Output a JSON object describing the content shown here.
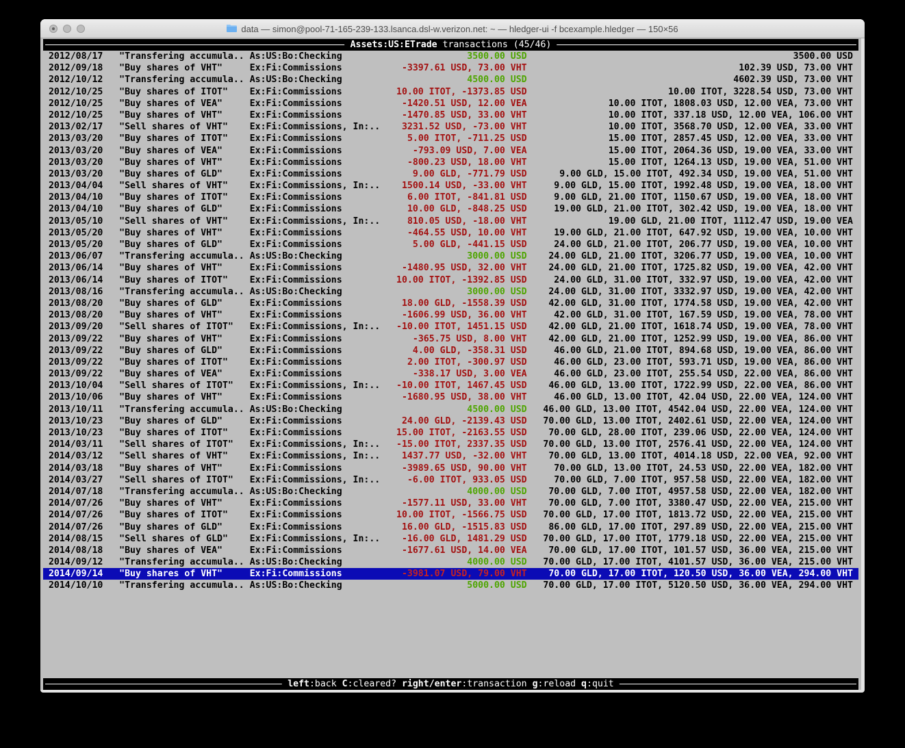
{
  "window": {
    "title": "data — simon@pool-71-165-239-133.lsanca.dsl-w.verizon.net: ~ — hledger-ui -f bcexample.hledger — 150×56"
  },
  "screen_header": {
    "account": "Assets:US:ETrade",
    "suffix": " transactions (45/46)"
  },
  "footer": {
    "hints": [
      {
        "key": "left",
        "label": ":back"
      },
      {
        "key": "C",
        "label": ":cleared?"
      },
      {
        "key": "right/enter",
        "label": ":transaction"
      },
      {
        "key": "g",
        "label": ":reload"
      },
      {
        "key": "q",
        "label": ":quit"
      }
    ]
  },
  "colors": {
    "terminal_bg": "#bfbfbf",
    "bar_bg": "#000000",
    "bar_fg": "#ffffff",
    "amount_negative": "#a31111",
    "amount_positive": "#4ea500",
    "selected_bg": "#0b0bb5",
    "selected_fg": "#ffffff",
    "selected_amount": "#c62222"
  },
  "transactions": [
    {
      "date": "2012/08/17",
      "desc": "\"Transfering accumula..",
      "acct": "As:US:Bo:Checking",
      "amt": "3500.00 USD",
      "amt_color": "green",
      "bal": "3500.00 USD",
      "selected": false
    },
    {
      "date": "2012/09/18",
      "desc": "\"Buy shares of VHT\"",
      "acct": "Ex:Fi:Commissions",
      "amt": "-3397.61 USD, 73.00 VHT",
      "amt_color": "red",
      "bal": "102.39 USD, 73.00 VHT",
      "selected": false
    },
    {
      "date": "2012/10/12",
      "desc": "\"Transfering accumula..",
      "acct": "As:US:Bo:Checking",
      "amt": "4500.00 USD",
      "amt_color": "green",
      "bal": "4602.39 USD, 73.00 VHT",
      "selected": false
    },
    {
      "date": "2012/10/25",
      "desc": "\"Buy shares of ITOT\"",
      "acct": "Ex:Fi:Commissions",
      "amt": "10.00 ITOT, -1373.85 USD",
      "amt_color": "red",
      "bal": "10.00 ITOT, 3228.54 USD, 73.00 VHT",
      "selected": false
    },
    {
      "date": "2012/10/25",
      "desc": "\"Buy shares of VEA\"",
      "acct": "Ex:Fi:Commissions",
      "amt": "-1420.51 USD, 12.00 VEA",
      "amt_color": "red",
      "bal": "10.00 ITOT, 1808.03 USD, 12.00 VEA, 73.00 VHT",
      "selected": false
    },
    {
      "date": "2012/10/25",
      "desc": "\"Buy shares of VHT\"",
      "acct": "Ex:Fi:Commissions",
      "amt": "-1470.85 USD, 33.00 VHT",
      "amt_color": "red",
      "bal": "10.00 ITOT, 337.18 USD, 12.00 VEA, 106.00 VHT",
      "selected": false
    },
    {
      "date": "2013/02/17",
      "desc": "\"Sell shares of VHT\"",
      "acct": "Ex:Fi:Commissions, In:..",
      "amt": "3231.52 USD, -73.00 VHT",
      "amt_color": "red",
      "bal": "10.00 ITOT, 3568.70 USD, 12.00 VEA, 33.00 VHT",
      "selected": false
    },
    {
      "date": "2013/03/20",
      "desc": "\"Buy shares of ITOT\"",
      "acct": "Ex:Fi:Commissions",
      "amt": "5.00 ITOT, -711.25 USD",
      "amt_color": "red",
      "bal": "15.00 ITOT, 2857.45 USD, 12.00 VEA, 33.00 VHT",
      "selected": false
    },
    {
      "date": "2013/03/20",
      "desc": "\"Buy shares of VEA\"",
      "acct": "Ex:Fi:Commissions",
      "amt": "-793.09 USD, 7.00 VEA",
      "amt_color": "red",
      "bal": "15.00 ITOT, 2064.36 USD, 19.00 VEA, 33.00 VHT",
      "selected": false
    },
    {
      "date": "2013/03/20",
      "desc": "\"Buy shares of VHT\"",
      "acct": "Ex:Fi:Commissions",
      "amt": "-800.23 USD, 18.00 VHT",
      "amt_color": "red",
      "bal": "15.00 ITOT, 1264.13 USD, 19.00 VEA, 51.00 VHT",
      "selected": false
    },
    {
      "date": "2013/03/20",
      "desc": "\"Buy shares of GLD\"",
      "acct": "Ex:Fi:Commissions",
      "amt": "9.00 GLD, -771.79 USD",
      "amt_color": "red",
      "bal": "9.00 GLD, 15.00 ITOT, 492.34 USD, 19.00 VEA, 51.00 VHT",
      "selected": false
    },
    {
      "date": "2013/04/04",
      "desc": "\"Sell shares of VHT\"",
      "acct": "Ex:Fi:Commissions, In:..",
      "amt": "1500.14 USD, -33.00 VHT",
      "amt_color": "red",
      "bal": "9.00 GLD, 15.00 ITOT, 1992.48 USD, 19.00 VEA, 18.00 VHT",
      "selected": false
    },
    {
      "date": "2013/04/10",
      "desc": "\"Buy shares of ITOT\"",
      "acct": "Ex:Fi:Commissions",
      "amt": "6.00 ITOT, -841.81 USD",
      "amt_color": "red",
      "bal": "9.00 GLD, 21.00 ITOT, 1150.67 USD, 19.00 VEA, 18.00 VHT",
      "selected": false
    },
    {
      "date": "2013/04/10",
      "desc": "\"Buy shares of GLD\"",
      "acct": "Ex:Fi:Commissions",
      "amt": "10.00 GLD, -848.25 USD",
      "amt_color": "red",
      "bal": "19.00 GLD, 21.00 ITOT, 302.42 USD, 19.00 VEA, 18.00 VHT",
      "selected": false
    },
    {
      "date": "2013/05/10",
      "desc": "\"Sell shares of VHT\"",
      "acct": "Ex:Fi:Commissions, In:..",
      "amt": "810.05 USD, -18.00 VHT",
      "amt_color": "red",
      "bal": "19.00 GLD, 21.00 ITOT, 1112.47 USD, 19.00 VEA",
      "selected": false
    },
    {
      "date": "2013/05/20",
      "desc": "\"Buy shares of VHT\"",
      "acct": "Ex:Fi:Commissions",
      "amt": "-464.55 USD, 10.00 VHT",
      "amt_color": "red",
      "bal": "19.00 GLD, 21.00 ITOT, 647.92 USD, 19.00 VEA, 10.00 VHT",
      "selected": false
    },
    {
      "date": "2013/05/20",
      "desc": "\"Buy shares of GLD\"",
      "acct": "Ex:Fi:Commissions",
      "amt": "5.00 GLD, -441.15 USD",
      "amt_color": "red",
      "bal": "24.00 GLD, 21.00 ITOT, 206.77 USD, 19.00 VEA, 10.00 VHT",
      "selected": false
    },
    {
      "date": "2013/06/07",
      "desc": "\"Transfering accumula..",
      "acct": "As:US:Bo:Checking",
      "amt": "3000.00 USD",
      "amt_color": "green",
      "bal": "24.00 GLD, 21.00 ITOT, 3206.77 USD, 19.00 VEA, 10.00 VHT",
      "selected": false
    },
    {
      "date": "2013/06/14",
      "desc": "\"Buy shares of VHT\"",
      "acct": "Ex:Fi:Commissions",
      "amt": "-1480.95 USD, 32.00 VHT",
      "amt_color": "red",
      "bal": "24.00 GLD, 21.00 ITOT, 1725.82 USD, 19.00 VEA, 42.00 VHT",
      "selected": false
    },
    {
      "date": "2013/06/14",
      "desc": "\"Buy shares of ITOT\"",
      "acct": "Ex:Fi:Commissions",
      "amt": "10.00 ITOT, -1392.85 USD",
      "amt_color": "red",
      "bal": "24.00 GLD, 31.00 ITOT, 332.97 USD, 19.00 VEA, 42.00 VHT",
      "selected": false
    },
    {
      "date": "2013/08/16",
      "desc": "\"Transfering accumula..",
      "acct": "As:US:Bo:Checking",
      "amt": "3000.00 USD",
      "amt_color": "green",
      "bal": "24.00 GLD, 31.00 ITOT, 3332.97 USD, 19.00 VEA, 42.00 VHT",
      "selected": false
    },
    {
      "date": "2013/08/20",
      "desc": "\"Buy shares of GLD\"",
      "acct": "Ex:Fi:Commissions",
      "amt": "18.00 GLD, -1558.39 USD",
      "amt_color": "red",
      "bal": "42.00 GLD, 31.00 ITOT, 1774.58 USD, 19.00 VEA, 42.00 VHT",
      "selected": false
    },
    {
      "date": "2013/08/20",
      "desc": "\"Buy shares of VHT\"",
      "acct": "Ex:Fi:Commissions",
      "amt": "-1606.99 USD, 36.00 VHT",
      "amt_color": "red",
      "bal": "42.00 GLD, 31.00 ITOT, 167.59 USD, 19.00 VEA, 78.00 VHT",
      "selected": false
    },
    {
      "date": "2013/09/20",
      "desc": "\"Sell shares of ITOT\"",
      "acct": "Ex:Fi:Commissions, In:..",
      "amt": "-10.00 ITOT, 1451.15 USD",
      "amt_color": "red",
      "bal": "42.00 GLD, 21.00 ITOT, 1618.74 USD, 19.00 VEA, 78.00 VHT",
      "selected": false
    },
    {
      "date": "2013/09/22",
      "desc": "\"Buy shares of VHT\"",
      "acct": "Ex:Fi:Commissions",
      "amt": "-365.75 USD, 8.00 VHT",
      "amt_color": "red",
      "bal": "42.00 GLD, 21.00 ITOT, 1252.99 USD, 19.00 VEA, 86.00 VHT",
      "selected": false
    },
    {
      "date": "2013/09/22",
      "desc": "\"Buy shares of GLD\"",
      "acct": "Ex:Fi:Commissions",
      "amt": "4.00 GLD, -358.31 USD",
      "amt_color": "red",
      "bal": "46.00 GLD, 21.00 ITOT, 894.68 USD, 19.00 VEA, 86.00 VHT",
      "selected": false
    },
    {
      "date": "2013/09/22",
      "desc": "\"Buy shares of ITOT\"",
      "acct": "Ex:Fi:Commissions",
      "amt": "2.00 ITOT, -300.97 USD",
      "amt_color": "red",
      "bal": "46.00 GLD, 23.00 ITOT, 593.71 USD, 19.00 VEA, 86.00 VHT",
      "selected": false
    },
    {
      "date": "2013/09/22",
      "desc": "\"Buy shares of VEA\"",
      "acct": "Ex:Fi:Commissions",
      "amt": "-338.17 USD, 3.00 VEA",
      "amt_color": "red",
      "bal": "46.00 GLD, 23.00 ITOT, 255.54 USD, 22.00 VEA, 86.00 VHT",
      "selected": false
    },
    {
      "date": "2013/10/04",
      "desc": "\"Sell shares of ITOT\"",
      "acct": "Ex:Fi:Commissions, In:..",
      "amt": "-10.00 ITOT, 1467.45 USD",
      "amt_color": "red",
      "bal": "46.00 GLD, 13.00 ITOT, 1722.99 USD, 22.00 VEA, 86.00 VHT",
      "selected": false
    },
    {
      "date": "2013/10/06",
      "desc": "\"Buy shares of VHT\"",
      "acct": "Ex:Fi:Commissions",
      "amt": "-1680.95 USD, 38.00 VHT",
      "amt_color": "red",
      "bal": "46.00 GLD, 13.00 ITOT, 42.04 USD, 22.00 VEA, 124.00 VHT",
      "selected": false
    },
    {
      "date": "2013/10/11",
      "desc": "\"Transfering accumula..",
      "acct": "As:US:Bo:Checking",
      "amt": "4500.00 USD",
      "amt_color": "green",
      "bal": "46.00 GLD, 13.00 ITOT, 4542.04 USD, 22.00 VEA, 124.00 VHT",
      "selected": false
    },
    {
      "date": "2013/10/23",
      "desc": "\"Buy shares of GLD\"",
      "acct": "Ex:Fi:Commissions",
      "amt": "24.00 GLD, -2139.43 USD",
      "amt_color": "red",
      "bal": "70.00 GLD, 13.00 ITOT, 2402.61 USD, 22.00 VEA, 124.00 VHT",
      "selected": false
    },
    {
      "date": "2013/10/23",
      "desc": "\"Buy shares of ITOT\"",
      "acct": "Ex:Fi:Commissions",
      "amt": "15.00 ITOT, -2163.55 USD",
      "amt_color": "red",
      "bal": "70.00 GLD, 28.00 ITOT, 239.06 USD, 22.00 VEA, 124.00 VHT",
      "selected": false
    },
    {
      "date": "2014/03/11",
      "desc": "\"Sell shares of ITOT\"",
      "acct": "Ex:Fi:Commissions, In:..",
      "amt": "-15.00 ITOT, 2337.35 USD",
      "amt_color": "red",
      "bal": "70.00 GLD, 13.00 ITOT, 2576.41 USD, 22.00 VEA, 124.00 VHT",
      "selected": false
    },
    {
      "date": "2014/03/12",
      "desc": "\"Sell shares of VHT\"",
      "acct": "Ex:Fi:Commissions, In:..",
      "amt": "1437.77 USD, -32.00 VHT",
      "amt_color": "red",
      "bal": "70.00 GLD, 13.00 ITOT, 4014.18 USD, 22.00 VEA, 92.00 VHT",
      "selected": false
    },
    {
      "date": "2014/03/18",
      "desc": "\"Buy shares of VHT\"",
      "acct": "Ex:Fi:Commissions",
      "amt": "-3989.65 USD, 90.00 VHT",
      "amt_color": "red",
      "bal": "70.00 GLD, 13.00 ITOT, 24.53 USD, 22.00 VEA, 182.00 VHT",
      "selected": false
    },
    {
      "date": "2014/03/27",
      "desc": "\"Sell shares of ITOT\"",
      "acct": "Ex:Fi:Commissions, In:..",
      "amt": "-6.00 ITOT, 933.05 USD",
      "amt_color": "red",
      "bal": "70.00 GLD, 7.00 ITOT, 957.58 USD, 22.00 VEA, 182.00 VHT",
      "selected": false
    },
    {
      "date": "2014/07/18",
      "desc": "\"Transfering accumula..",
      "acct": "As:US:Bo:Checking",
      "amt": "4000.00 USD",
      "amt_color": "green",
      "bal": "70.00 GLD, 7.00 ITOT, 4957.58 USD, 22.00 VEA, 182.00 VHT",
      "selected": false
    },
    {
      "date": "2014/07/26",
      "desc": "\"Buy shares of VHT\"",
      "acct": "Ex:Fi:Commissions",
      "amt": "-1577.11 USD, 33.00 VHT",
      "amt_color": "red",
      "bal": "70.00 GLD, 7.00 ITOT, 3380.47 USD, 22.00 VEA, 215.00 VHT",
      "selected": false
    },
    {
      "date": "2014/07/26",
      "desc": "\"Buy shares of ITOT\"",
      "acct": "Ex:Fi:Commissions",
      "amt": "10.00 ITOT, -1566.75 USD",
      "amt_color": "red",
      "bal": "70.00 GLD, 17.00 ITOT, 1813.72 USD, 22.00 VEA, 215.00 VHT",
      "selected": false
    },
    {
      "date": "2014/07/26",
      "desc": "\"Buy shares of GLD\"",
      "acct": "Ex:Fi:Commissions",
      "amt": "16.00 GLD, -1515.83 USD",
      "amt_color": "red",
      "bal": "86.00 GLD, 17.00 ITOT, 297.89 USD, 22.00 VEA, 215.00 VHT",
      "selected": false
    },
    {
      "date": "2014/08/15",
      "desc": "\"Sell shares of GLD\"",
      "acct": "Ex:Fi:Commissions, In:..",
      "amt": "-16.00 GLD, 1481.29 USD",
      "amt_color": "red",
      "bal": "70.00 GLD, 17.00 ITOT, 1779.18 USD, 22.00 VEA, 215.00 VHT",
      "selected": false
    },
    {
      "date": "2014/08/18",
      "desc": "\"Buy shares of VEA\"",
      "acct": "Ex:Fi:Commissions",
      "amt": "-1677.61 USD, 14.00 VEA",
      "amt_color": "red",
      "bal": "70.00 GLD, 17.00 ITOT, 101.57 USD, 36.00 VEA, 215.00 VHT",
      "selected": false
    },
    {
      "date": "2014/09/12",
      "desc": "\"Transfering accumula..",
      "acct": "As:US:Bo:Checking",
      "amt": "4000.00 USD",
      "amt_color": "green",
      "bal": "70.00 GLD, 17.00 ITOT, 4101.57 USD, 36.00 VEA, 215.00 VHT",
      "selected": false
    },
    {
      "date": "2014/09/14",
      "desc": "\"Buy shares of VHT\"",
      "acct": "Ex:Fi:Commissions",
      "amt": "-3981.07 USD, 79.00 VHT",
      "amt_color": "red",
      "bal": "70.00 GLD, 17.00 ITOT, 120.50 USD, 36.00 VEA, 294.00 VHT",
      "selected": true
    },
    {
      "date": "2014/10/10",
      "desc": "\"Transfering accumula..",
      "acct": "As:US:Bo:Checking",
      "amt": "5000.00 USD",
      "amt_color": "green",
      "bal": "70.00 GLD, 17.00 ITOT, 5120.50 USD, 36.00 VEA, 294.00 VHT",
      "selected": false
    }
  ]
}
